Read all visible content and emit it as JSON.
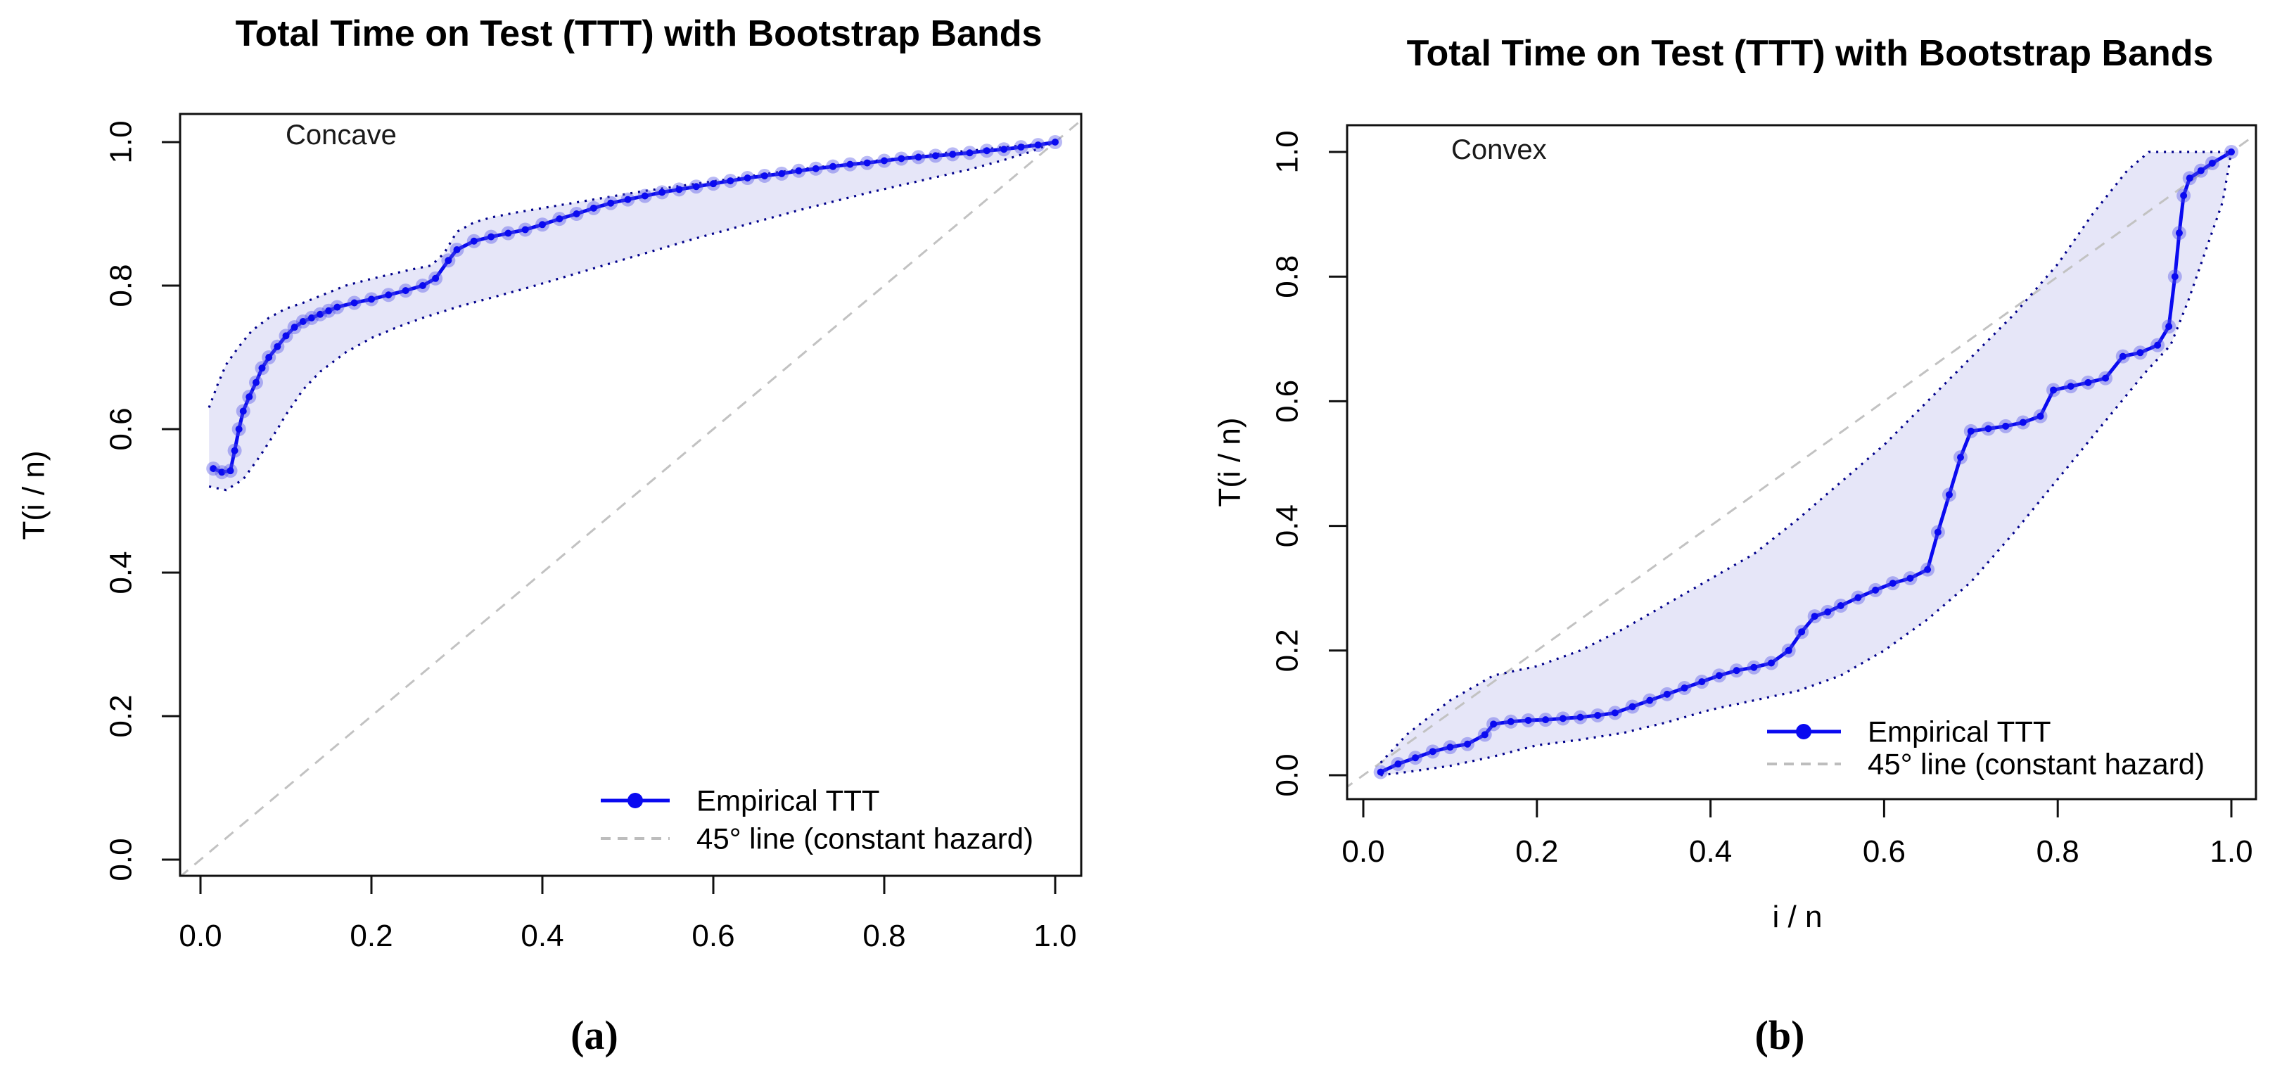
{
  "figure": {
    "background": "#ffffff",
    "captions": [
      "(a)",
      "(b)"
    ]
  },
  "chart_data": [
    {
      "type": "line",
      "title": "Total Time on Test (TTT) with Bootstrap Bands",
      "annotation": "Concave",
      "caption": "(a)",
      "xlabel": "",
      "ylabel": "T(i / n)",
      "xlim": [
        0,
        1
      ],
      "ylim": [
        0,
        1
      ],
      "grid": false,
      "x_ticks": [
        "0.0",
        "0.2",
        "0.4",
        "0.6",
        "0.8",
        "1.0"
      ],
      "y_ticks": [
        "0.0",
        "0.2",
        "0.4",
        "0.6",
        "0.8",
        "1.0"
      ],
      "legend_position": "bottom-right",
      "legend": [
        {
          "label": "Empirical TTT",
          "type": "line-point",
          "color": "#0a0af0"
        },
        {
          "label": "45° line (constant hazard)",
          "type": "dashed-line",
          "color": "#bdbdbd"
        }
      ],
      "reference_line": {
        "name": "45-degree line (constant hazard)",
        "from": [
          0,
          0
        ],
        "to": [
          1,
          1
        ],
        "style": "dashed",
        "color": "#c2c2c2"
      },
      "band": {
        "name": "bootstrap band",
        "fill": "#e6e6f8",
        "border_color": "#00008b",
        "upper": [
          [
            0.01,
            0.63
          ],
          [
            0.02,
            0.662
          ],
          [
            0.03,
            0.69
          ],
          [
            0.045,
            0.715
          ],
          [
            0.06,
            0.737
          ],
          [
            0.08,
            0.755
          ],
          [
            0.1,
            0.768
          ],
          [
            0.12,
            0.776
          ],
          [
            0.145,
            0.788
          ],
          [
            0.17,
            0.8
          ],
          [
            0.195,
            0.808
          ],
          [
            0.22,
            0.815
          ],
          [
            0.245,
            0.822
          ],
          [
            0.27,
            0.828
          ],
          [
            0.285,
            0.845
          ],
          [
            0.3,
            0.875
          ],
          [
            0.32,
            0.888
          ],
          [
            0.34,
            0.895
          ],
          [
            0.37,
            0.902
          ],
          [
            0.4,
            0.908
          ],
          [
            0.43,
            0.914
          ],
          [
            0.46,
            0.92
          ],
          [
            0.49,
            0.926
          ],
          [
            0.52,
            0.932
          ],
          [
            0.55,
            0.937
          ],
          [
            0.58,
            0.942
          ],
          [
            0.61,
            0.947
          ],
          [
            0.64,
            0.952
          ],
          [
            0.67,
            0.957
          ],
          [
            0.7,
            0.962
          ],
          [
            0.73,
            0.966
          ],
          [
            0.76,
            0.97
          ],
          [
            0.79,
            0.974
          ],
          [
            0.82,
            0.978
          ],
          [
            0.85,
            0.982
          ],
          [
            0.88,
            0.986
          ],
          [
            0.91,
            0.989
          ],
          [
            0.94,
            0.993
          ],
          [
            0.97,
            0.996
          ],
          [
            1.0,
            1.0
          ]
        ],
        "lower": [
          [
            0.01,
            0.52
          ],
          [
            0.03,
            0.515
          ],
          [
            0.05,
            0.53
          ],
          [
            0.07,
            0.563
          ],
          [
            0.09,
            0.6
          ],
          [
            0.1,
            0.62
          ],
          [
            0.12,
            0.655
          ],
          [
            0.14,
            0.68
          ],
          [
            0.17,
            0.707
          ],
          [
            0.2,
            0.727
          ],
          [
            0.23,
            0.742
          ],
          [
            0.26,
            0.755
          ],
          [
            0.3,
            0.77
          ],
          [
            0.34,
            0.783
          ],
          [
            0.38,
            0.796
          ],
          [
            0.42,
            0.81
          ],
          [
            0.46,
            0.824
          ],
          [
            0.5,
            0.838
          ],
          [
            0.54,
            0.852
          ],
          [
            0.58,
            0.866
          ],
          [
            0.62,
            0.879
          ],
          [
            0.66,
            0.892
          ],
          [
            0.7,
            0.905
          ],
          [
            0.74,
            0.917
          ],
          [
            0.78,
            0.929
          ],
          [
            0.82,
            0.94
          ],
          [
            0.86,
            0.951
          ],
          [
            0.9,
            0.962
          ],
          [
            0.94,
            0.975
          ],
          [
            0.97,
            0.986
          ],
          [
            1.0,
            1.0
          ]
        ]
      },
      "series": [
        {
          "name": "Empirical TTT",
          "color": "#0a0af0",
          "points": [
            [
              0.015,
              0.545
            ],
            [
              0.025,
              0.54
            ],
            [
              0.035,
              0.542
            ],
            [
              0.04,
              0.57
            ],
            [
              0.045,
              0.6
            ],
            [
              0.05,
              0.625
            ],
            [
              0.057,
              0.645
            ],
            [
              0.065,
              0.665
            ],
            [
              0.072,
              0.685
            ],
            [
              0.08,
              0.7
            ],
            [
              0.09,
              0.715
            ],
            [
              0.1,
              0.73
            ],
            [
              0.11,
              0.742
            ],
            [
              0.12,
              0.75
            ],
            [
              0.13,
              0.755
            ],
            [
              0.14,
              0.76
            ],
            [
              0.15,
              0.765
            ],
            [
              0.16,
              0.77
            ],
            [
              0.18,
              0.776
            ],
            [
              0.2,
              0.781
            ],
            [
              0.22,
              0.787
            ],
            [
              0.24,
              0.793
            ],
            [
              0.26,
              0.8
            ],
            [
              0.275,
              0.81
            ],
            [
              0.29,
              0.835
            ],
            [
              0.3,
              0.85
            ],
            [
              0.32,
              0.862
            ],
            [
              0.34,
              0.868
            ],
            [
              0.36,
              0.873
            ],
            [
              0.38,
              0.878
            ],
            [
              0.4,
              0.885
            ],
            [
              0.42,
              0.893
            ],
            [
              0.44,
              0.9
            ],
            [
              0.46,
              0.908
            ],
            [
              0.48,
              0.915
            ],
            [
              0.5,
              0.92
            ],
            [
              0.52,
              0.925
            ],
            [
              0.54,
              0.93
            ],
            [
              0.56,
              0.934
            ],
            [
              0.58,
              0.938
            ],
            [
              0.6,
              0.942
            ],
            [
              0.62,
              0.946
            ],
            [
              0.64,
              0.95
            ],
            [
              0.66,
              0.953
            ],
            [
              0.68,
              0.956
            ],
            [
              0.7,
              0.96
            ],
            [
              0.72,
              0.963
            ],
            [
              0.74,
              0.966
            ],
            [
              0.76,
              0.969
            ],
            [
              0.78,
              0.971
            ],
            [
              0.8,
              0.974
            ],
            [
              0.82,
              0.977
            ],
            [
              0.84,
              0.979
            ],
            [
              0.86,
              0.981
            ],
            [
              0.88,
              0.983
            ],
            [
              0.9,
              0.985
            ],
            [
              0.92,
              0.988
            ],
            [
              0.94,
              0.99
            ],
            [
              0.96,
              0.993
            ],
            [
              0.98,
              0.996
            ],
            [
              1.0,
              1.0
            ]
          ]
        }
      ]
    },
    {
      "type": "line",
      "title": "Total Time on Test (TTT) with Bootstrap Bands",
      "annotation": "Convex",
      "caption": "(b)",
      "xlabel": "i / n",
      "ylabel": "T(i / n)",
      "xlim": [
        0,
        1
      ],
      "ylim": [
        0,
        1
      ],
      "grid": false,
      "x_ticks": [
        "0.0",
        "0.2",
        "0.4",
        "0.6",
        "0.8",
        "1.0"
      ],
      "y_ticks": [
        "0.0",
        "0.2",
        "0.4",
        "0.6",
        "0.8",
        "1.0"
      ],
      "legend_position": "bottom-right",
      "legend": [
        {
          "label": "Empirical TTT",
          "type": "line-point",
          "color": "#0a0af0"
        },
        {
          "label": "45° line (constant hazard)",
          "type": "dashed-line",
          "color": "#bdbdbd"
        }
      ],
      "reference_line": {
        "name": "45-degree line (constant hazard)",
        "from": [
          0,
          0
        ],
        "to": [
          1,
          1
        ],
        "style": "dashed",
        "color": "#c2c2c2"
      },
      "band": {
        "name": "bootstrap band",
        "fill": "#e6e6f8",
        "border_color": "#00008b",
        "upper": [
          [
            0.02,
            0.02
          ],
          [
            0.05,
            0.065
          ],
          [
            0.1,
            0.12
          ],
          [
            0.15,
            0.16
          ],
          [
            0.2,
            0.175
          ],
          [
            0.25,
            0.2
          ],
          [
            0.3,
            0.235
          ],
          [
            0.35,
            0.275
          ],
          [
            0.4,
            0.315
          ],
          [
            0.45,
            0.355
          ],
          [
            0.5,
            0.41
          ],
          [
            0.55,
            0.47
          ],
          [
            0.6,
            0.53
          ],
          [
            0.65,
            0.6
          ],
          [
            0.7,
            0.67
          ],
          [
            0.75,
            0.74
          ],
          [
            0.8,
            0.82
          ],
          [
            0.84,
            0.9
          ],
          [
            0.88,
            0.97
          ],
          [
            0.905,
            1.0
          ],
          [
            1.0,
            1.0
          ]
        ],
        "lower": [
          [
            0.02,
            0.0
          ],
          [
            0.05,
            0.005
          ],
          [
            0.1,
            0.015
          ],
          [
            0.15,
            0.03
          ],
          [
            0.2,
            0.048
          ],
          [
            0.25,
            0.057
          ],
          [
            0.3,
            0.068
          ],
          [
            0.35,
            0.085
          ],
          [
            0.4,
            0.105
          ],
          [
            0.45,
            0.12
          ],
          [
            0.5,
            0.135
          ],
          [
            0.55,
            0.16
          ],
          [
            0.6,
            0.2
          ],
          [
            0.65,
            0.25
          ],
          [
            0.7,
            0.31
          ],
          [
            0.75,
            0.39
          ],
          [
            0.8,
            0.475
          ],
          [
            0.85,
            0.56
          ],
          [
            0.9,
            0.645
          ],
          [
            0.93,
            0.69
          ],
          [
            0.95,
            0.76
          ],
          [
            0.97,
            0.84
          ],
          [
            0.99,
            0.92
          ],
          [
            1.0,
            1.0
          ]
        ]
      },
      "series": [
        {
          "name": "Empirical TTT",
          "color": "#0a0af0",
          "points": [
            [
              0.02,
              0.005
            ],
            [
              0.04,
              0.018
            ],
            [
              0.06,
              0.028
            ],
            [
              0.08,
              0.038
            ],
            [
              0.1,
              0.045
            ],
            [
              0.12,
              0.05
            ],
            [
              0.14,
              0.065
            ],
            [
              0.15,
              0.082
            ],
            [
              0.17,
              0.086
            ],
            [
              0.19,
              0.088
            ],
            [
              0.21,
              0.089
            ],
            [
              0.23,
              0.091
            ],
            [
              0.25,
              0.093
            ],
            [
              0.27,
              0.096
            ],
            [
              0.29,
              0.1
            ],
            [
              0.31,
              0.11
            ],
            [
              0.33,
              0.12
            ],
            [
              0.35,
              0.13
            ],
            [
              0.37,
              0.14
            ],
            [
              0.39,
              0.15
            ],
            [
              0.41,
              0.16
            ],
            [
              0.43,
              0.168
            ],
            [
              0.45,
              0.173
            ],
            [
              0.47,
              0.18
            ],
            [
              0.49,
              0.2
            ],
            [
              0.505,
              0.23
            ],
            [
              0.52,
              0.255
            ],
            [
              0.535,
              0.262
            ],
            [
              0.55,
              0.272
            ],
            [
              0.57,
              0.285
            ],
            [
              0.59,
              0.297
            ],
            [
              0.61,
              0.308
            ],
            [
              0.63,
              0.316
            ],
            [
              0.65,
              0.33
            ],
            [
              0.662,
              0.39
            ],
            [
              0.675,
              0.45
            ],
            [
              0.688,
              0.51
            ],
            [
              0.7,
              0.552
            ],
            [
              0.72,
              0.556
            ],
            [
              0.74,
              0.56
            ],
            [
              0.76,
              0.566
            ],
            [
              0.78,
              0.576
            ],
            [
              0.795,
              0.618
            ],
            [
              0.815,
              0.624
            ],
            [
              0.835,
              0.63
            ],
            [
              0.855,
              0.637
            ],
            [
              0.875,
              0.672
            ],
            [
              0.895,
              0.678
            ],
            [
              0.915,
              0.69
            ],
            [
              0.928,
              0.72
            ],
            [
              0.935,
              0.8
            ],
            [
              0.94,
              0.87
            ],
            [
              0.945,
              0.93
            ],
            [
              0.952,
              0.958
            ],
            [
              0.965,
              0.97
            ],
            [
              0.978,
              0.982
            ],
            [
              1.0,
              1.0
            ]
          ]
        }
      ]
    }
  ]
}
